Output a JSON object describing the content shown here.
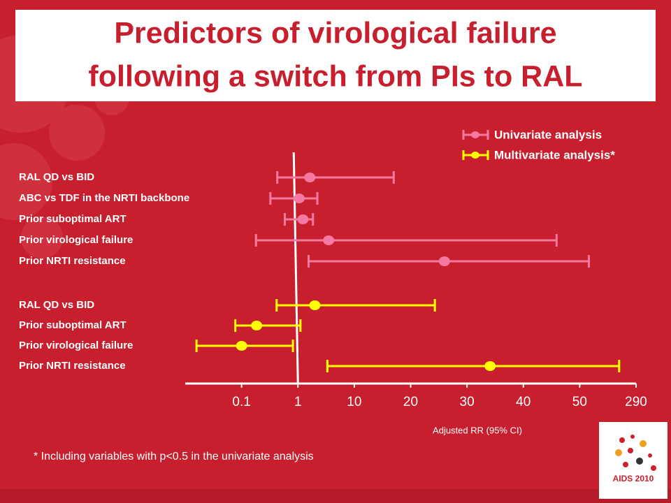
{
  "chart_data": {
    "type": "forest",
    "title": [
      "Predictors of virological failure",
      "following a switch from PIs to RAL"
    ],
    "xlabel": "Adjusted RR (95% CI)",
    "footnote": "* Including variables with p<0.5 in the univariate analysis",
    "logo_text": "AIDS 2010",
    "xlim": [
      0.01,
      290
    ],
    "xticks": [
      0.1,
      1,
      10,
      20,
      30,
      40,
      50,
      290
    ],
    "ref_line": 1,
    "series": [
      {
        "name": "Univariate analysis",
        "color": "#f57aa3",
        "labels": [
          "RAL QD vs BID",
          "ABC vs TDF in the NRTI backbone",
          "Prior suboptimal ART",
          "Prior virological failure",
          "Prior NRTI resistance"
        ],
        "values": [
          2.9,
          1.2,
          1.8,
          5.9,
          26
        ],
        "lower": [
          0.67,
          0.56,
          0.79,
          0.33,
          2.7
        ],
        "upper": [
          17,
          4.1,
          3.4,
          45.9,
          89
        ]
      },
      {
        "name": "Multivariate analysis*",
        "color": "#ffff00",
        "labels": [
          "RAL QD vs BID",
          "Prior suboptimal ART",
          "Prior virological failure",
          "Prior NRTI resistance"
        ],
        "values": [
          3.7,
          0.34,
          0.1,
          34.1
        ],
        "lower": [
          0.66,
          0.09,
          0.028,
          5.7
        ],
        "upper": [
          24.3,
          1.4,
          0.92,
          218
        ]
      }
    ]
  }
}
